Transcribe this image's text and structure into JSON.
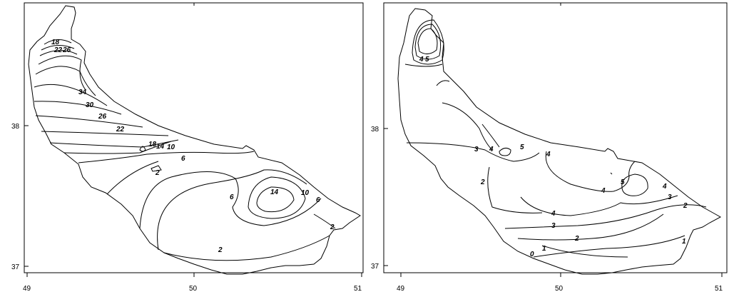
{
  "maps": [
    {
      "x_ticks": [
        "49",
        "50",
        "51"
      ],
      "y_ticks": [
        "38",
        "37"
      ],
      "isoline_labels": [
        "18",
        "22",
        "26",
        "34",
        "30",
        "26",
        "22",
        "18",
        "14",
        "10",
        "6",
        "2",
        "6",
        "14",
        "10",
        "6",
        "2",
        "2"
      ]
    },
    {
      "x_ticks": [
        "49",
        "50",
        "51"
      ],
      "y_ticks": [
        "38",
        "37"
      ],
      "isoline_labels": [
        "4",
        "5",
        "3",
        "4",
        "5",
        "4",
        "2",
        "5",
        "4",
        "4",
        "3",
        "2",
        "4",
        "3",
        "2",
        "1",
        "1",
        "0"
      ]
    }
  ]
}
